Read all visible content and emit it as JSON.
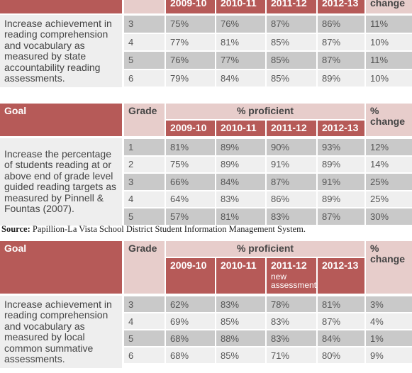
{
  "tables": [
    {
      "header": {
        "years": [
          "2009-10",
          "2010-11",
          "2011-12",
          "2012-13"
        ],
        "change": "change"
      },
      "goal": "Increase achievement in reading comprehension and vocabulary as measured by state accountability reading assessments.",
      "rows": [
        [
          "3",
          "75%",
          "76%",
          "87%",
          "86%",
          "11%"
        ],
        [
          "4",
          "77%",
          "81%",
          "85%",
          "87%",
          "10%"
        ],
        [
          "5",
          "76%",
          "77%",
          "85%",
          "87%",
          "11%"
        ],
        [
          "6",
          "79%",
          "84%",
          "85%",
          "89%",
          "10%"
        ]
      ]
    },
    {
      "header": {
        "goal": "Goal",
        "grade": "Grade",
        "proficient": "% proficient",
        "years": [
          "2009-10",
          "2010-11",
          "2011-12",
          "2012-13"
        ],
        "change": "% change"
      },
      "goal": "Increase the percentage of students reading at or above end of grade level guided reading targets as measured by Pinnell & Fountas (2007).",
      "rows": [
        [
          "1",
          "81%",
          "89%",
          "90%",
          "93%",
          "12%"
        ],
        [
          "2",
          "75%",
          "89%",
          "91%",
          "89%",
          "14%"
        ],
        [
          "3",
          "66%",
          "84%",
          "87%",
          "91%",
          "25%"
        ],
        [
          "4",
          "64%",
          "83%",
          "86%",
          "89%",
          "25%"
        ],
        [
          "5",
          "57%",
          "81%",
          "83%",
          "87%",
          "30%"
        ]
      ]
    },
    {
      "header": {
        "goal": "Goal",
        "grade": "Grade",
        "proficient": "% proficient",
        "years": [
          "2009-10",
          "2010-11",
          "2011-12",
          "2012-13"
        ],
        "year_note": "new assessments",
        "change": "% change"
      },
      "goal": "Increase achievement in reading comprehension and vocabulary as measured by local common summative assessments.",
      "rows": [
        [
          "3",
          "62%",
          "83%",
          "78%",
          "81%",
          "3%"
        ],
        [
          "4",
          "69%",
          "85%",
          "83%",
          "87%",
          "4%"
        ],
        [
          "5",
          "68%",
          "88%",
          "83%",
          "84%",
          "1%"
        ],
        [
          "6",
          "68%",
          "85%",
          "71%",
          "80%",
          "9%"
        ]
      ]
    }
  ],
  "source": {
    "label": "Source:",
    "text": "Papillion-La Vista School District Student Information Management System."
  }
}
